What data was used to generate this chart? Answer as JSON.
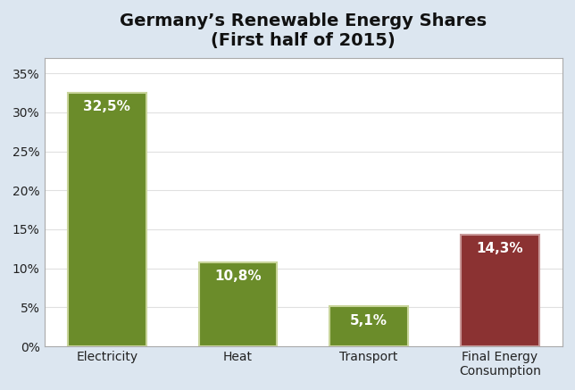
{
  "title_line1": "Germany’s Renewable Energy Shares",
  "title_line2": "(First half of 2015)",
  "categories": [
    "Electricity",
    "Heat",
    "Transport",
    "Final Energy\nConsumption"
  ],
  "values": [
    32.5,
    10.8,
    5.1,
    14.3
  ],
  "labels": [
    "32,5%",
    "10,8%",
    "5,1%",
    "14,3%"
  ],
  "bar_colors": [
    "#6b8c2a",
    "#6b8c2a",
    "#6b8c2a",
    "#8b3232"
  ],
  "bar_edge_colors": [
    "#c8d49a",
    "#c8d49a",
    "#c8d49a",
    "#c89898"
  ],
  "ylim": [
    0,
    37
  ],
  "yticks": [
    0,
    5,
    10,
    15,
    20,
    25,
    30,
    35
  ],
  "ytick_labels": [
    "0%",
    "5%",
    "10%",
    "15%",
    "20%",
    "25%",
    "30%",
    "35%"
  ],
  "fig_background_color": "#dce6f0",
  "plot_background_color": "#ffffff",
  "title_fontsize": 14,
  "label_fontsize": 11,
  "tick_fontsize": 10,
  "bar_width": 0.6,
  "border_color": "#aaaaaa",
  "grid_color": "#e0e0e0"
}
